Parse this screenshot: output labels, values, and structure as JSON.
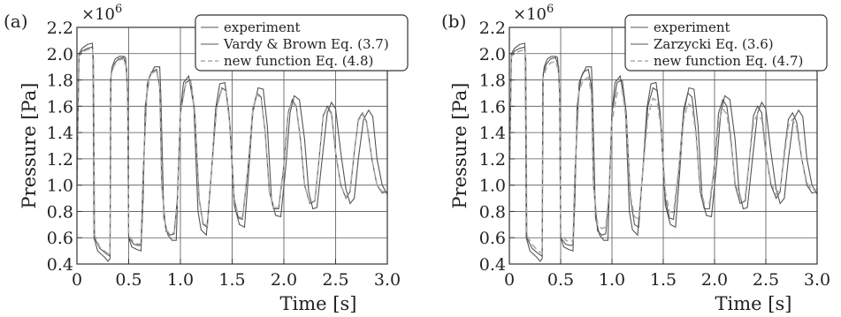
{
  "chart_data": [
    {
      "type": "line",
      "panel_label": "(a)",
      "xlabel": "Time [s]",
      "ylabel": "Pressure [Pa]",
      "y_multiplier": "×10",
      "y_multiplier_exp": "6",
      "xlim": [
        0,
        3.0
      ],
      "ylim": [
        0.4,
        2.2
      ],
      "xticks": [
        0,
        0.5,
        1.0,
        1.5,
        2.0,
        2.5,
        3.0
      ],
      "xtick_labels": [
        "0",
        "0.5",
        "1.0",
        "1.5",
        "2.0",
        "2.5",
        "3.0"
      ],
      "yticks": [
        0.4,
        0.6,
        0.8,
        1.0,
        1.2,
        1.4,
        1.6,
        1.8,
        2.0,
        2.2
      ],
      "ytick_labels": [
        "0.4",
        "0.6",
        "0.8",
        "1.0",
        "1.2",
        "1.4",
        "1.6",
        "1.8",
        "2.0",
        "2.2"
      ],
      "grid": true,
      "legend_position": "top-right",
      "series": [
        {
          "name": "experiment",
          "color": "#555555",
          "style": "solid",
          "x": [
            0,
            0.02,
            0.05,
            0.1,
            0.15,
            0.155,
            0.165,
            0.2,
            0.27,
            0.3,
            0.32,
            0.325,
            0.34,
            0.37,
            0.41,
            0.45,
            0.47,
            0.49,
            0.5,
            0.53,
            0.58,
            0.62,
            0.64,
            0.66,
            0.7,
            0.75,
            0.8,
            0.81,
            0.84,
            0.88,
            0.92,
            0.96,
            0.98,
            1.0,
            1.03,
            1.08,
            1.13,
            1.17,
            1.2,
            1.25,
            1.3,
            1.34,
            1.38,
            1.43,
            1.47,
            1.52,
            1.57,
            1.62,
            1.66,
            1.7,
            1.75,
            1.8,
            1.84,
            1.88,
            1.92,
            1.97,
            2.02,
            2.06,
            2.1,
            2.15,
            2.2,
            2.24,
            2.28,
            2.32,
            2.37,
            2.42,
            2.46,
            2.5,
            2.55,
            2.6,
            2.64,
            2.68,
            2.72,
            2.77,
            2.82,
            2.86,
            2.9,
            2.95,
            3.0
          ],
          "y": [
            1.0,
            2.0,
            2.04,
            2.07,
            2.08,
            1.95,
            0.6,
            0.5,
            0.45,
            0.42,
            0.44,
            1.8,
            1.9,
            1.96,
            1.98,
            1.98,
            1.97,
            1.7,
            0.6,
            0.53,
            0.51,
            0.5,
            0.9,
            1.6,
            1.82,
            1.9,
            1.9,
            1.7,
            0.75,
            0.62,
            0.58,
            0.58,
            1.1,
            1.55,
            1.78,
            1.83,
            1.6,
            0.8,
            0.66,
            0.62,
            1.1,
            1.58,
            1.77,
            1.78,
            1.55,
            0.85,
            0.7,
            0.68,
            1.1,
            1.55,
            1.74,
            1.73,
            1.45,
            0.9,
            0.77,
            0.76,
            1.15,
            1.55,
            1.68,
            1.65,
            1.35,
            0.95,
            0.82,
            0.83,
            1.2,
            1.55,
            1.63,
            1.58,
            1.25,
            0.97,
            0.86,
            0.9,
            1.2,
            1.5,
            1.57,
            1.52,
            1.2,
            1.0,
            0.93
          ]
        },
        {
          "name": "Vardy & Brown Eq. (3.7)",
          "color": "#555555",
          "style": "solid",
          "x": [
            0,
            0.02,
            0.05,
            0.1,
            0.15,
            0.16,
            0.17,
            0.22,
            0.28,
            0.32,
            0.33,
            0.36,
            0.4,
            0.45,
            0.48,
            0.49,
            0.5,
            0.55,
            0.6,
            0.62,
            0.64,
            0.68,
            0.72,
            0.77,
            0.8,
            0.82,
            0.86,
            0.9,
            0.94,
            0.97,
            1.0,
            1.05,
            1.1,
            1.14,
            1.18,
            1.22,
            1.26,
            1.3,
            1.35,
            1.4,
            1.44,
            1.48,
            1.52,
            1.56,
            1.6,
            1.65,
            1.7,
            1.74,
            1.78,
            1.82,
            1.86,
            1.9,
            1.95,
            2.0,
            2.04,
            2.08,
            2.12,
            2.16,
            2.2,
            2.25,
            2.3,
            2.34,
            2.38,
            2.42,
            2.46,
            2.5,
            2.55,
            2.6,
            2.64,
            2.68,
            2.72,
            2.76,
            2.8,
            2.85,
            2.9,
            2.95,
            3.0
          ],
          "y": [
            1.0,
            1.98,
            2.02,
            2.04,
            2.05,
            1.95,
            0.6,
            0.52,
            0.48,
            0.46,
            1.85,
            1.92,
            1.96,
            1.97,
            1.9,
            1.7,
            0.6,
            0.55,
            0.54,
            0.55,
            1.1,
            1.78,
            1.86,
            1.88,
            1.75,
            1.0,
            0.65,
            0.62,
            0.63,
            0.9,
            1.55,
            1.78,
            1.8,
            1.55,
            0.9,
            0.7,
            0.68,
            1.1,
            1.6,
            1.74,
            1.72,
            1.45,
            0.9,
            0.75,
            0.74,
            1.1,
            1.58,
            1.7,
            1.67,
            1.4,
            0.95,
            0.82,
            0.82,
            1.15,
            1.55,
            1.65,
            1.6,
            1.35,
            1.0,
            0.86,
            0.88,
            1.2,
            1.53,
            1.6,
            1.55,
            1.25,
            1.0,
            0.9,
            0.95,
            1.25,
            1.5,
            1.55,
            1.48,
            1.2,
            1.0,
            0.94,
            0.95
          ]
        },
        {
          "name": "new function Eq. (4.8)",
          "color": "#aaaaaa",
          "style": "dashed",
          "x": [
            0,
            0.02,
            0.05,
            0.1,
            0.15,
            0.16,
            0.17,
            0.22,
            0.28,
            0.32,
            0.33,
            0.36,
            0.4,
            0.45,
            0.48,
            0.49,
            0.5,
            0.55,
            0.6,
            0.62,
            0.64,
            0.68,
            0.72,
            0.77,
            0.8,
            0.82,
            0.86,
            0.9,
            0.94,
            0.97,
            1.0,
            1.05,
            1.1,
            1.14,
            1.18,
            1.22,
            1.26,
            1.3,
            1.35,
            1.4,
            1.44,
            1.48,
            1.52,
            1.56,
            1.6,
            1.65,
            1.7,
            1.74,
            1.78,
            1.82,
            1.86,
            1.9,
            1.95,
            2.0,
            2.04,
            2.08,
            2.12,
            2.16,
            2.2,
            2.25,
            2.3,
            2.34,
            2.38,
            2.42,
            2.46,
            2.5,
            2.55,
            2.6,
            2.64,
            2.68,
            2.72,
            2.76,
            2.8,
            2.85,
            2.9,
            2.95,
            3.0
          ],
          "y": [
            1.0,
            1.98,
            2.01,
            2.03,
            2.04,
            1.94,
            0.62,
            0.53,
            0.49,
            0.47,
            1.84,
            1.91,
            1.95,
            1.96,
            1.89,
            1.7,
            0.62,
            0.56,
            0.55,
            0.56,
            1.1,
            1.77,
            1.85,
            1.87,
            1.74,
            1.0,
            0.66,
            0.63,
            0.64,
            0.9,
            1.54,
            1.77,
            1.79,
            1.55,
            0.9,
            0.71,
            0.69,
            1.1,
            1.59,
            1.73,
            1.71,
            1.45,
            0.9,
            0.76,
            0.75,
            1.1,
            1.57,
            1.69,
            1.66,
            1.4,
            0.95,
            0.83,
            0.83,
            1.15,
            1.54,
            1.64,
            1.59,
            1.35,
            1.0,
            0.87,
            0.89,
            1.2,
            1.52,
            1.59,
            1.54,
            1.25,
            1.0,
            0.91,
            0.96,
            1.25,
            1.49,
            1.54,
            1.47,
            1.2,
            1.0,
            0.95,
            0.96
          ]
        }
      ]
    },
    {
      "type": "line",
      "panel_label": "(b)",
      "xlabel": "Time [s]",
      "ylabel": "Pressure [Pa]",
      "y_multiplier": "×10",
      "y_multiplier_exp": "6",
      "xlim": [
        0,
        3.0
      ],
      "ylim": [
        0.4,
        2.2
      ],
      "xticks": [
        0,
        0.5,
        1.0,
        1.5,
        2.0,
        2.5,
        3.0
      ],
      "xtick_labels": [
        "0",
        "0.5",
        "1.0",
        "1.5",
        "2.0",
        "2.5",
        "3.0"
      ],
      "yticks": [
        0.4,
        0.6,
        0.8,
        1.0,
        1.2,
        1.4,
        1.6,
        1.8,
        2.0,
        2.2
      ],
      "ytick_labels": [
        "0.4",
        "0.6",
        "0.8",
        "1.0",
        "1.2",
        "1.4",
        "1.6",
        "1.8",
        "2.0",
        "2.2"
      ],
      "grid": true,
      "legend_position": "top-right",
      "series": [
        {
          "name": "experiment",
          "color": "#555555",
          "style": "solid",
          "x": [
            0,
            0.02,
            0.05,
            0.1,
            0.15,
            0.155,
            0.165,
            0.2,
            0.27,
            0.3,
            0.32,
            0.325,
            0.34,
            0.37,
            0.41,
            0.45,
            0.47,
            0.49,
            0.5,
            0.53,
            0.58,
            0.62,
            0.64,
            0.66,
            0.7,
            0.75,
            0.8,
            0.81,
            0.84,
            0.88,
            0.92,
            0.96,
            0.98,
            1.0,
            1.03,
            1.08,
            1.13,
            1.17,
            1.2,
            1.25,
            1.3,
            1.34,
            1.38,
            1.43,
            1.47,
            1.52,
            1.57,
            1.62,
            1.66,
            1.7,
            1.75,
            1.8,
            1.84,
            1.88,
            1.92,
            1.97,
            2.02,
            2.06,
            2.1,
            2.15,
            2.2,
            2.24,
            2.28,
            2.32,
            2.37,
            2.42,
            2.46,
            2.5,
            2.55,
            2.6,
            2.64,
            2.68,
            2.72,
            2.77,
            2.82,
            2.86,
            2.9,
            2.95,
            3.0
          ],
          "y": [
            1.0,
            2.0,
            2.04,
            2.07,
            2.08,
            1.95,
            0.6,
            0.5,
            0.45,
            0.42,
            0.44,
            1.8,
            1.9,
            1.96,
            1.98,
            1.98,
            1.97,
            1.7,
            0.6,
            0.53,
            0.51,
            0.5,
            0.9,
            1.6,
            1.82,
            1.9,
            1.9,
            1.7,
            0.75,
            0.62,
            0.58,
            0.58,
            1.1,
            1.55,
            1.78,
            1.83,
            1.6,
            0.8,
            0.66,
            0.62,
            1.1,
            1.58,
            1.77,
            1.78,
            1.55,
            0.85,
            0.7,
            0.68,
            1.1,
            1.55,
            1.74,
            1.73,
            1.45,
            0.9,
            0.77,
            0.76,
            1.15,
            1.55,
            1.68,
            1.65,
            1.35,
            0.95,
            0.82,
            0.83,
            1.2,
            1.55,
            1.63,
            1.58,
            1.25,
            0.97,
            0.86,
            0.9,
            1.2,
            1.5,
            1.57,
            1.52,
            1.2,
            1.0,
            0.93
          ]
        },
        {
          "name": "Zarzycki Eq. (3.6)",
          "color": "#555555",
          "style": "solid",
          "x": [
            0,
            0.02,
            0.05,
            0.1,
            0.15,
            0.16,
            0.17,
            0.22,
            0.28,
            0.32,
            0.33,
            0.36,
            0.4,
            0.45,
            0.48,
            0.49,
            0.5,
            0.55,
            0.6,
            0.62,
            0.64,
            0.68,
            0.72,
            0.77,
            0.8,
            0.82,
            0.86,
            0.9,
            0.94,
            0.97,
            1.0,
            1.05,
            1.1,
            1.14,
            1.18,
            1.22,
            1.26,
            1.3,
            1.35,
            1.4,
            1.44,
            1.48,
            1.52,
            1.56,
            1.6,
            1.65,
            1.7,
            1.74,
            1.78,
            1.82,
            1.86,
            1.9,
            1.95,
            2.0,
            2.04,
            2.08,
            2.12,
            2.16,
            2.2,
            2.25,
            2.3,
            2.34,
            2.38,
            2.42,
            2.46,
            2.5,
            2.55,
            2.6,
            2.64,
            2.68,
            2.72,
            2.76,
            2.8,
            2.85,
            2.9,
            2.95,
            3.0
          ],
          "y": [
            1.0,
            1.98,
            2.02,
            2.04,
            2.05,
            1.95,
            0.6,
            0.52,
            0.48,
            0.46,
            1.85,
            1.92,
            1.96,
            1.97,
            1.9,
            1.7,
            0.6,
            0.55,
            0.54,
            0.55,
            1.1,
            1.78,
            1.86,
            1.88,
            1.75,
            1.0,
            0.65,
            0.62,
            0.63,
            0.9,
            1.55,
            1.78,
            1.8,
            1.55,
            0.9,
            0.7,
            0.68,
            1.1,
            1.6,
            1.74,
            1.72,
            1.45,
            0.9,
            0.75,
            0.74,
            1.1,
            1.58,
            1.7,
            1.67,
            1.4,
            0.95,
            0.82,
            0.82,
            1.15,
            1.55,
            1.65,
            1.6,
            1.35,
            1.0,
            0.86,
            0.88,
            1.2,
            1.53,
            1.6,
            1.55,
            1.25,
            1.0,
            0.9,
            0.95,
            1.25,
            1.5,
            1.55,
            1.48,
            1.2,
            1.0,
            0.94,
            0.95
          ]
        },
        {
          "name": "new function Eq. (4.7)",
          "color": "#aaaaaa",
          "style": "dashed",
          "x": [
            0,
            0.02,
            0.05,
            0.1,
            0.15,
            0.16,
            0.17,
            0.22,
            0.28,
            0.32,
            0.33,
            0.36,
            0.4,
            0.45,
            0.48,
            0.49,
            0.5,
            0.55,
            0.6,
            0.62,
            0.64,
            0.68,
            0.72,
            0.77,
            0.8,
            0.82,
            0.86,
            0.9,
            0.94,
            0.97,
            1.0,
            1.05,
            1.1,
            1.14,
            1.18,
            1.22,
            1.26,
            1.3,
            1.35,
            1.4,
            1.44,
            1.48,
            1.52,
            1.56,
            1.6,
            1.65,
            1.7,
            1.74,
            1.78,
            1.82,
            1.86,
            1.9,
            1.95,
            2.0,
            2.04,
            2.08,
            2.12,
            2.16,
            2.2,
            2.25,
            2.3,
            2.34,
            2.38,
            2.42,
            2.46,
            2.5,
            2.55,
            2.6,
            2.64,
            2.68,
            2.72,
            2.76,
            2.8,
            2.85,
            2.9,
            2.95,
            3.0
          ],
          "y": [
            1.0,
            1.98,
            2.0,
            2.02,
            2.03,
            1.93,
            0.62,
            0.55,
            0.5,
            0.48,
            1.82,
            1.89,
            1.93,
            1.94,
            1.87,
            1.68,
            0.64,
            0.58,
            0.57,
            0.58,
            1.1,
            1.72,
            1.8,
            1.82,
            1.7,
            1.0,
            0.7,
            0.67,
            0.68,
            0.92,
            1.48,
            1.7,
            1.72,
            1.5,
            0.92,
            0.76,
            0.74,
            1.1,
            1.52,
            1.66,
            1.64,
            1.42,
            0.95,
            0.8,
            0.79,
            1.12,
            1.5,
            1.62,
            1.6,
            1.38,
            0.98,
            0.86,
            0.86,
            1.15,
            1.48,
            1.58,
            1.54,
            1.32,
            1.02,
            0.9,
            0.92,
            1.2,
            1.47,
            1.54,
            1.5,
            1.24,
            1.02,
            0.93,
            0.97,
            1.22,
            1.45,
            1.5,
            1.44,
            1.2,
            1.02,
            0.96,
            0.97
          ]
        }
      ]
    }
  ]
}
